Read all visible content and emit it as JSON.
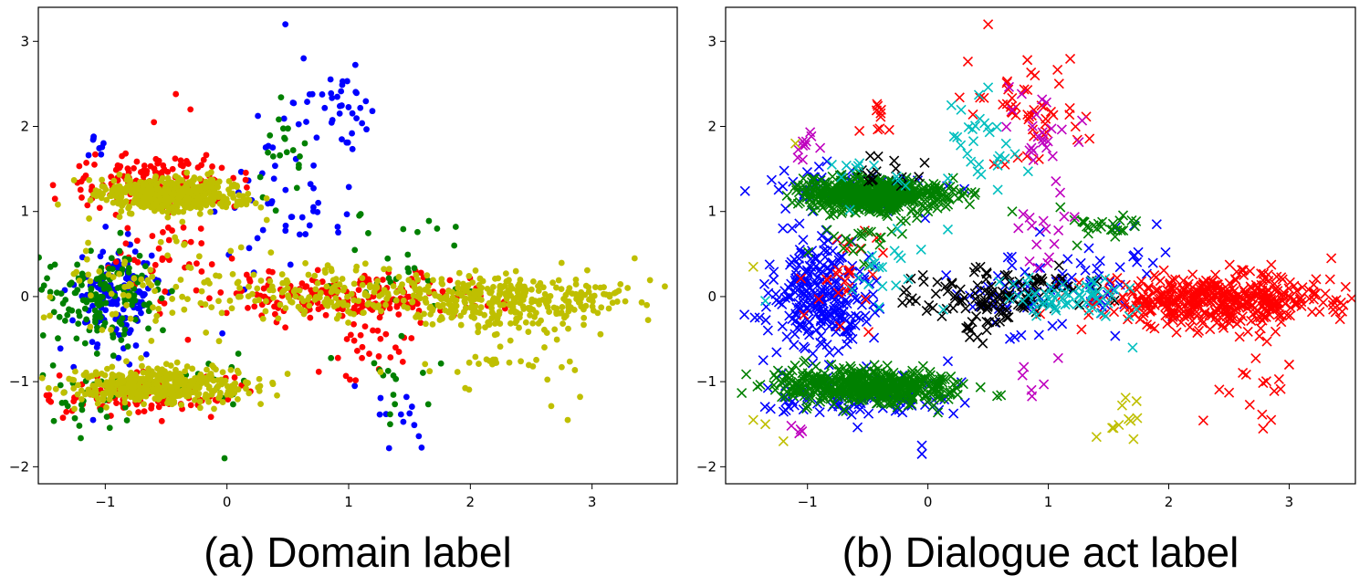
{
  "chart_data": [
    {
      "type": "scatter",
      "title": "",
      "caption": "(a) Domain label",
      "marker": "circle",
      "xlim": [
        -1.55,
        3.7
      ],
      "ylim": [
        -2.2,
        3.4
      ],
      "xticks": [
        -1,
        0,
        1,
        2,
        3
      ],
      "yticks": [
        -2,
        -1,
        0,
        1,
        2,
        3
      ],
      "xtick_labels": [
        "−1",
        "0",
        "1",
        "2",
        "3"
      ],
      "ytick_labels": [
        "−2",
        "−1",
        "0",
        "1",
        "2",
        "3"
      ],
      "grid": false,
      "series": [
        {
          "name": "blue",
          "color": "#0000ff",
          "clusters": [
            {
              "cx": -0.9,
              "cy": 0.0,
              "sx": 0.18,
              "sy": 0.3,
              "n": 140
            },
            {
              "cx": 0.9,
              "cy": 2.3,
              "sx": 0.15,
              "sy": 0.18,
              "n": 35
            },
            {
              "cx": 0.45,
              "cy": 1.0,
              "sx": 0.25,
              "sy": 0.5,
              "n": 50
            },
            {
              "cx": -1.05,
              "cy": 1.75,
              "sx": 0.08,
              "sy": 0.1,
              "n": 8
            },
            {
              "cx": 1.4,
              "cy": -1.3,
              "sx": 0.15,
              "sy": 0.3,
              "n": 12
            }
          ],
          "extra": [
            [
              0.48,
              3.2
            ],
            [
              0.63,
              2.8
            ],
            [
              1.05,
              -1.05
            ],
            [
              -1.1,
              -1.45
            ]
          ]
        },
        {
          "name": "red",
          "color": "#ff0000",
          "clusters": [
            {
              "cx": -0.6,
              "cy": 1.35,
              "sx": 0.35,
              "sy": 0.15,
              "n": 140
            },
            {
              "cx": -0.7,
              "cy": -1.15,
              "sx": 0.35,
              "sy": 0.12,
              "n": 110
            },
            {
              "cx": 1.0,
              "cy": 0.0,
              "sx": 0.6,
              "sy": 0.15,
              "n": 200
            },
            {
              "cx": -0.4,
              "cy": 0.5,
              "sx": 0.3,
              "sy": 0.3,
              "n": 40
            },
            {
              "cx": 1.2,
              "cy": -0.6,
              "sx": 0.2,
              "sy": 0.2,
              "n": 25
            }
          ],
          "extra": [
            [
              -0.42,
              2.38
            ],
            [
              -0.3,
              2.2
            ],
            [
              -0.6,
              2.05
            ]
          ]
        },
        {
          "name": "green",
          "color": "#008000",
          "clusters": [
            {
              "cx": -1.0,
              "cy": 0.0,
              "sx": 0.22,
              "sy": 0.28,
              "n": 140
            },
            {
              "cx": -1.1,
              "cy": -1.2,
              "sx": 0.2,
              "sy": 0.25,
              "n": 30
            },
            {
              "cx": 0.45,
              "cy": 1.6,
              "sx": 0.1,
              "sy": 0.3,
              "n": 20
            },
            {
              "cx": 1.5,
              "cy": 0.4,
              "sx": 0.3,
              "sy": 0.3,
              "n": 25
            },
            {
              "cx": 1.4,
              "cy": -0.9,
              "sx": 0.2,
              "sy": 0.2,
              "n": 15
            },
            {
              "cx": -0.1,
              "cy": -1.1,
              "sx": 0.2,
              "sy": 0.2,
              "n": 15
            }
          ],
          "extra": [
            [
              -1.45,
              0.35
            ],
            [
              -0.02,
              -1.9
            ],
            [
              1.88,
              0.82
            ]
          ]
        },
        {
          "name": "yellow",
          "color": "#bfbf00",
          "clusters": [
            {
              "cx": -0.45,
              "cy": 1.2,
              "sx": 0.3,
              "sy": 0.1,
              "n": 500
            },
            {
              "cx": -0.6,
              "cy": -1.05,
              "sx": 0.35,
              "sy": 0.1,
              "n": 450
            },
            {
              "cx": 2.3,
              "cy": -0.05,
              "sx": 0.5,
              "sy": 0.15,
              "n": 350
            },
            {
              "cx": 0.7,
              "cy": 0.05,
              "sx": 0.5,
              "sy": 0.15,
              "n": 150
            },
            {
              "cx": -0.6,
              "cy": 0.1,
              "sx": 0.45,
              "sy": 0.35,
              "n": 80
            },
            {
              "cx": 2.3,
              "cy": -0.7,
              "sx": 0.4,
              "sy": 0.3,
              "n": 35
            }
          ],
          "extra": [
            [
              3.35,
              0.45
            ],
            [
              3.45,
              -0.1
            ],
            [
              2.8,
              -1.45
            ]
          ]
        }
      ]
    },
    {
      "type": "scatter",
      "title": "",
      "caption": "(b) Dialogue act label",
      "marker": "x",
      "xlim": [
        -1.68,
        3.55
      ],
      "ylim": [
        -2.2,
        3.4
      ],
      "xticks": [
        -1,
        0,
        1,
        2,
        3
      ],
      "yticks": [
        -2,
        -1,
        0,
        1,
        2,
        3
      ],
      "xtick_labels": [
        "−1",
        "0",
        "1",
        "2",
        "3"
      ],
      "ytick_labels": [
        "−2",
        "−1",
        "0",
        "1",
        "2",
        "3"
      ],
      "grid": false,
      "series": [
        {
          "name": "blue",
          "color": "#0000ff",
          "clusters": [
            {
              "cx": -0.9,
              "cy": 0.0,
              "sx": 0.22,
              "sy": 0.35,
              "n": 260
            },
            {
              "cx": -0.55,
              "cy": 1.25,
              "sx": 0.4,
              "sy": 0.12,
              "n": 80
            },
            {
              "cx": -0.55,
              "cy": -1.2,
              "sx": 0.4,
              "sy": 0.15,
              "n": 90
            },
            {
              "cx": 1.0,
              "cy": 0.0,
              "sx": 0.4,
              "sy": 0.25,
              "n": 70
            },
            {
              "cx": 1.6,
              "cy": 0.5,
              "sx": 0.25,
              "sy": 0.25,
              "n": 15
            }
          ],
          "extra": [
            [
              -0.05,
              -1.85
            ],
            [
              -0.05,
              -1.75
            ],
            [
              1.9,
              0.85
            ]
          ]
        },
        {
          "name": "red",
          "color": "#ff0000",
          "clusters": [
            {
              "cx": 2.4,
              "cy": -0.05,
              "sx": 0.45,
              "sy": 0.15,
              "n": 450
            },
            {
              "cx": 0.85,
              "cy": 2.2,
              "sx": 0.2,
              "sy": 0.35,
              "n": 50
            },
            {
              "cx": -0.4,
              "cy": 2.1,
              "sx": 0.1,
              "sy": 0.15,
              "n": 10
            },
            {
              "cx": 2.6,
              "cy": -1.0,
              "sx": 0.25,
              "sy": 0.3,
              "n": 15
            },
            {
              "cx": -0.7,
              "cy": 0.3,
              "sx": 0.2,
              "sy": 0.3,
              "n": 25
            }
          ],
          "extra": [
            [
              0.5,
              3.2
            ],
            [
              3.35,
              0.45
            ],
            [
              3.45,
              -0.1
            ],
            [
              2.85,
              -1.45
            ],
            [
              3.0,
              -0.8
            ]
          ]
        },
        {
          "name": "green",
          "color": "#008000",
          "clusters": [
            {
              "cx": -0.45,
              "cy": 1.2,
              "sx": 0.3,
              "sy": 0.1,
              "n": 550
            },
            {
              "cx": -0.5,
              "cy": -1.05,
              "sx": 0.35,
              "sy": 0.1,
              "n": 500
            },
            {
              "cx": 1.4,
              "cy": 0.8,
              "sx": 0.15,
              "sy": 0.1,
              "n": 25
            },
            {
              "cx": -0.6,
              "cy": 0.6,
              "sx": 0.2,
              "sy": 0.15,
              "n": 20
            }
          ],
          "extra": [
            [
              0.7,
              1.0
            ],
            [
              1.1,
              1.05
            ]
          ]
        },
        {
          "name": "black",
          "color": "#000000",
          "clusters": [
            {
              "cx": 0.65,
              "cy": 0.05,
              "sx": 0.35,
              "sy": 0.15,
              "n": 110
            },
            {
              "cx": -0.35,
              "cy": 1.5,
              "sx": 0.15,
              "sy": 0.1,
              "n": 15
            },
            {
              "cx": 0.4,
              "cy": -0.3,
              "sx": 0.2,
              "sy": 0.15,
              "n": 20
            }
          ],
          "extra": [
            [
              -0.2,
              0.05
            ],
            [
              -0.1,
              -0.05
            ]
          ]
        },
        {
          "name": "cyan",
          "color": "#00bfbf",
          "clusters": [
            {
              "cx": 1.2,
              "cy": 0.0,
              "sx": 0.25,
              "sy": 0.1,
              "n": 60
            },
            {
              "cx": 0.5,
              "cy": 1.8,
              "sx": 0.2,
              "sy": 0.3,
              "n": 30
            },
            {
              "cx": -0.3,
              "cy": 0.3,
              "sx": 0.25,
              "sy": 0.3,
              "n": 20
            },
            {
              "cx": -0.55,
              "cy": 1.5,
              "sx": 0.15,
              "sy": 0.1,
              "n": 10
            }
          ],
          "extra": [
            [
              -1.35,
              -0.05
            ],
            [
              1.7,
              -0.6
            ]
          ]
        },
        {
          "name": "magenta",
          "color": "#bf00bf",
          "clusters": [
            {
              "cx": -1.0,
              "cy": 1.75,
              "sx": 0.08,
              "sy": 0.1,
              "n": 10
            },
            {
              "cx": 1.0,
              "cy": 1.9,
              "sx": 0.15,
              "sy": 0.3,
              "n": 25
            },
            {
              "cx": 0.95,
              "cy": 0.7,
              "sx": 0.1,
              "sy": 0.2,
              "n": 15
            },
            {
              "cx": 0.95,
              "cy": -1.0,
              "sx": 0.1,
              "sy": 0.1,
              "n": 6
            },
            {
              "cx": -1.05,
              "cy": -1.6,
              "sx": 0.05,
              "sy": 0.05,
              "n": 4
            }
          ]
        },
        {
          "name": "yellow",
          "color": "#bfbf00",
          "clusters": [
            {
              "cx": 1.6,
              "cy": -1.35,
              "sx": 0.08,
              "sy": 0.15,
              "n": 10
            }
          ],
          "extra": [
            [
              -1.45,
              -1.45
            ],
            [
              -1.35,
              -1.5
            ],
            [
              -1.2,
              -1.7
            ],
            [
              -1.45,
              0.35
            ],
            [
              -1.1,
              1.8
            ],
            [
              1.4,
              -1.65
            ]
          ]
        }
      ]
    }
  ]
}
